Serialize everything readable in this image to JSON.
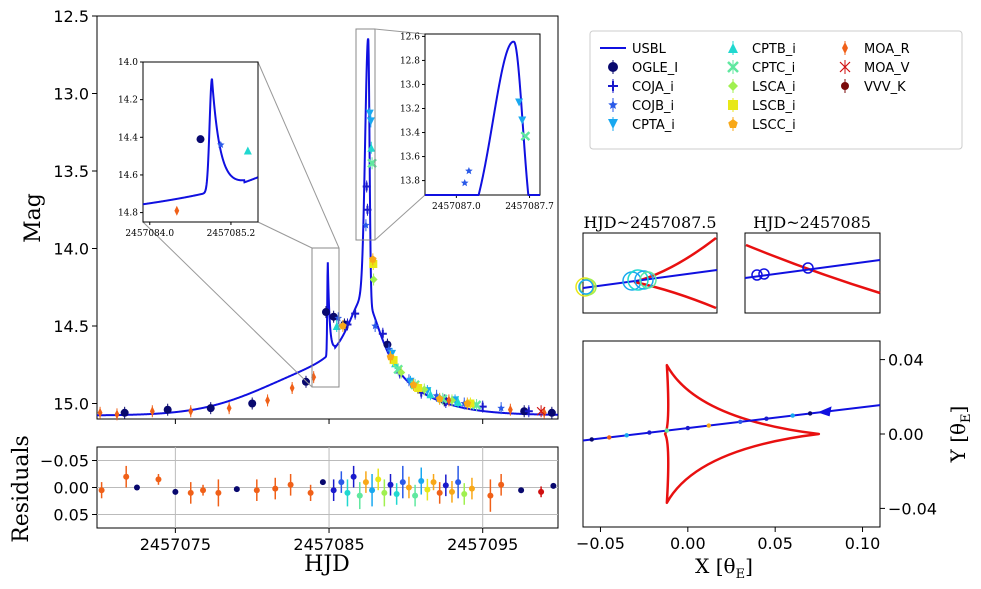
{
  "chart_data": [
    {
      "id": "main",
      "type": "line",
      "title": "",
      "ylabel": "Mag",
      "xlabel": "",
      "xlim": [
        2457069.9,
        2457099.9
      ],
      "ylim": [
        15.1,
        12.5
      ],
      "y_inverted": true,
      "yticks": [
        "12.5",
        "13.0",
        "13.5",
        "14.0",
        "14.5",
        "15.0"
      ],
      "ytick_values": [
        12.5,
        13.0,
        13.5,
        14.0,
        14.5,
        15.0
      ],
      "model_name": "USBL",
      "model_color": "#1010e0",
      "series": [
        {
          "name": "OGLE_I",
          "color": "#08086e",
          "marker": "circle",
          "points": [
            [
              2457071.7,
              15.06
            ],
            [
              2457074.5,
              15.04
            ],
            [
              2457077.3,
              15.03
            ],
            [
              2457080.0,
              15.0
            ],
            [
              2457083.5,
              14.86
            ],
            [
              2457084.8,
              14.41
            ],
            [
              2457085.3,
              14.44
            ],
            [
              2457086.0,
              14.49
            ],
            [
              2457088.8,
              14.62
            ],
            [
              2457092.5,
              14.98
            ],
            [
              2457097.7,
              15.05
            ],
            [
              2457099.5,
              15.06
            ]
          ]
        },
        {
          "name": "COJA_i",
          "color": "#1a1acc",
          "marker": "plus",
          "points": [
            [
              2457086.2,
              14.49
            ],
            [
              2457086.7,
              14.42
            ],
            [
              2457087.45,
              13.6
            ],
            [
              2457087.5,
              13.75
            ],
            [
              2457088.5,
              14.55
            ],
            [
              2457089.6,
              14.8
            ],
            [
              2457091.0,
              14.93
            ],
            [
              2457092.6,
              14.99
            ],
            [
              2457095.0,
              15.02
            ],
            [
              2457098.0,
              15.05
            ]
          ]
        },
        {
          "name": "COJB_i",
          "color": "#2a5ae8",
          "marker": "star",
          "points": [
            [
              2457085.6,
              14.45
            ],
            [
              2457087.4,
              13.85
            ],
            [
              2457088.0,
              14.5
            ],
            [
              2457088.9,
              14.65
            ],
            [
              2457090.2,
              14.85
            ],
            [
              2457092.0,
              14.95
            ],
            [
              2457093.8,
              15.0
            ],
            [
              2457096.2,
              15.03
            ]
          ]
        },
        {
          "name": "CPTA_i",
          "color": "#18a8f0",
          "marker": "tri-down",
          "points": [
            [
              2457087.65,
              13.13
            ],
            [
              2457087.72,
              13.18
            ],
            [
              2457089.1,
              14.68
            ],
            [
              2457090.3,
              14.86
            ],
            [
              2457091.4,
              14.92
            ],
            [
              2457093.2,
              14.98
            ]
          ]
        },
        {
          "name": "CPTB_i",
          "color": "#20d8d0",
          "marker": "tri-up",
          "points": [
            [
              2457085.5,
              14.5
            ],
            [
              2457087.75,
              13.35
            ],
            [
              2457089.3,
              14.74
            ],
            [
              2457091.6,
              14.94
            ],
            [
              2457093.4,
              14.99
            ]
          ]
        },
        {
          "name": "CPTC_i",
          "color": "#60e8a0",
          "marker": "x",
          "points": [
            [
              2457087.8,
              13.45
            ],
            [
              2457089.5,
              14.78
            ],
            [
              2457090.6,
              14.88
            ],
            [
              2457092.4,
              14.97
            ],
            [
              2457094.6,
              15.01
            ]
          ]
        },
        {
          "name": "LSCA_i",
          "color": "#a0f050",
          "marker": "diamond",
          "points": [
            [
              2457087.9,
              14.2
            ],
            [
              2457089.7,
              14.8
            ],
            [
              2457091.2,
              14.91
            ],
            [
              2457093.0,
              14.98
            ]
          ]
        },
        {
          "name": "LSCB_i",
          "color": "#e8e818",
          "marker": "square",
          "points": [
            [
              2457087.88,
              14.1
            ],
            [
              2457089.2,
              14.72
            ],
            [
              2457090.8,
              14.9
            ],
            [
              2457094.2,
              15.0
            ]
          ]
        },
        {
          "name": "LSCC_i",
          "color": "#f8a818",
          "marker": "pentagon",
          "points": [
            [
              2457085.9,
              14.5
            ],
            [
              2457087.85,
              14.07
            ],
            [
              2457089.0,
              14.7
            ],
            [
              2457090.5,
              14.88
            ],
            [
              2457092.2,
              14.97
            ],
            [
              2457094.0,
              15.0
            ]
          ]
        },
        {
          "name": "MOA_R",
          "color": "#f06018",
          "marker": "diamond-thin",
          "points": [
            [
              2457070.1,
              15.06
            ],
            [
              2457071.2,
              15.07
            ],
            [
              2457073.5,
              15.05
            ],
            [
              2457076.0,
              15.05
            ],
            [
              2457078.5,
              15.03
            ],
            [
              2457081.0,
              14.98
            ],
            [
              2457082.6,
              14.9
            ],
            [
              2457084.0,
              14.83
            ],
            [
              2457092.8,
              14.98
            ],
            [
              2457096.8,
              15.04
            ],
            [
              2457099.0,
              15.06
            ]
          ]
        },
        {
          "name": "MOA_V",
          "color": "#d01010",
          "marker": "x-thin",
          "points": [
            [
              2457098.8,
              15.05
            ]
          ]
        },
        {
          "name": "VVV_K",
          "color": "#7a0a0a",
          "marker": "circle-small",
          "points": []
        }
      ]
    },
    {
      "id": "inset_left",
      "type": "line",
      "xlim": [
        2457083.9,
        2457085.6
      ],
      "ylim": [
        14.85,
        14.0
      ],
      "y_inverted": true,
      "xticks": [
        "2457084.0",
        "2457085.2"
      ],
      "xtick_values": [
        2457084.0,
        2457085.2
      ],
      "yticks": [
        "14.0",
        "14.2",
        "14.4",
        "14.6",
        "14.8"
      ],
      "ytick_values": [
        14.0,
        14.2,
        14.4,
        14.6,
        14.8
      ],
      "points": [
        {
          "series": "MOA_R",
          "x": 2457084.4,
          "y": 14.79,
          "color": "#f06018"
        },
        {
          "series": "OGLE_I",
          "x": 2457084.75,
          "y": 14.41,
          "color": "#08086e"
        },
        {
          "series": "COJB_i",
          "x": 2457085.05,
          "y": 14.44,
          "color": "#2a5ae8"
        },
        {
          "series": "CPTB_i",
          "x": 2457085.45,
          "y": 14.47,
          "color": "#20d8d0"
        }
      ]
    },
    {
      "id": "inset_right",
      "type": "line",
      "xlim": [
        2457086.7,
        2457087.8
      ],
      "ylim": [
        13.92,
        12.58
      ],
      "y_inverted": true,
      "xticks": [
        "2457087.0",
        "2457087.7"
      ],
      "xtick_values": [
        2457087.0,
        2457087.7
      ],
      "yticks": [
        "12.6",
        "12.8",
        "13.0",
        "13.2",
        "13.4",
        "13.6",
        "13.8"
      ],
      "ytick_values": [
        12.6,
        12.8,
        13.0,
        13.2,
        13.4,
        13.6,
        13.8
      ],
      "points": [
        {
          "series": "COJB_i",
          "x": 2457087.08,
          "y": 13.82,
          "color": "#2a5ae8"
        },
        {
          "series": "COJB_i",
          "x": 2457087.12,
          "y": 13.72,
          "color": "#2a5ae8"
        },
        {
          "series": "CPTA_i",
          "x": 2457087.6,
          "y": 13.15,
          "color": "#18a8f0"
        },
        {
          "series": "CPTA_i",
          "x": 2457087.63,
          "y": 13.3,
          "color": "#18a8f0"
        },
        {
          "series": "CPTC_i",
          "x": 2457087.66,
          "y": 13.43,
          "color": "#60e8a0"
        }
      ]
    },
    {
      "id": "residuals",
      "type": "scatter",
      "ylabel": "Residuals",
      "xlabel": "HJD",
      "xlim": [
        2457069.9,
        2457099.9
      ],
      "ylim": [
        0.075,
        -0.075
      ],
      "y_inverted": true,
      "xticks": [
        "2457075",
        "2457085",
        "2457095"
      ],
      "xtick_values": [
        2457075,
        2457085,
        2457095
      ],
      "yticks": [
        "−0.05",
        "0.00",
        "0.05"
      ],
      "ytick_values": [
        -0.05,
        0.0,
        0.05
      ],
      "points": [
        [
          2457070.2,
          0.005,
          0.015,
          "#f06018"
        ],
        [
          2457071.8,
          -0.02,
          0.02,
          "#f06018"
        ],
        [
          2457072.5,
          0.0,
          0.0,
          "#08086e"
        ],
        [
          2457073.9,
          -0.015,
          0.01,
          "#f06018"
        ],
        [
          2457075.0,
          0.008,
          0.0,
          "#08086e"
        ],
        [
          2457076.0,
          0.01,
          0.02,
          "#f06018"
        ],
        [
          2457076.8,
          0.005,
          0.01,
          "#f06018"
        ],
        [
          2457077.8,
          0.01,
          0.025,
          "#f06018"
        ],
        [
          2457079.0,
          0.003,
          0.0,
          "#08086e"
        ],
        [
          2457080.3,
          0.005,
          0.02,
          "#f06018"
        ],
        [
          2457081.5,
          0.002,
          0.02,
          "#f06018"
        ],
        [
          2457082.5,
          -0.005,
          0.02,
          "#f06018"
        ],
        [
          2457083.8,
          0.01,
          0.015,
          "#f06018"
        ],
        [
          2457084.6,
          -0.01,
          0.0,
          "#08086e"
        ],
        [
          2457085.3,
          0.005,
          0.02,
          "#1a1acc"
        ],
        [
          2457085.8,
          -0.01,
          0.02,
          "#2a5ae8"
        ],
        [
          2457086.2,
          0.01,
          0.025,
          "#20d8d0"
        ],
        [
          2457086.6,
          -0.02,
          0.02,
          "#1a1acc"
        ],
        [
          2457087.0,
          0.015,
          0.025,
          "#60e8a0"
        ],
        [
          2457087.4,
          -0.01,
          0.02,
          "#f8a818"
        ],
        [
          2457087.8,
          0.005,
          0.03,
          "#18a8f0"
        ],
        [
          2457088.2,
          -0.015,
          0.02,
          "#e8e818"
        ],
        [
          2457088.6,
          0.01,
          0.025,
          "#a0f050"
        ],
        [
          2457089.0,
          -0.005,
          0.02,
          "#1a1acc"
        ],
        [
          2457089.4,
          0.012,
          0.02,
          "#20d8d0"
        ],
        [
          2457089.8,
          -0.01,
          0.03,
          "#2a5ae8"
        ],
        [
          2457090.2,
          0.0,
          0.02,
          "#f8a818"
        ],
        [
          2457090.6,
          0.015,
          0.02,
          "#60e8a0"
        ],
        [
          2457091.0,
          -0.012,
          0.025,
          "#18a8f0"
        ],
        [
          2457091.4,
          0.004,
          0.02,
          "#e8e818"
        ],
        [
          2457091.8,
          -0.01,
          0.015,
          "#f8a818"
        ],
        [
          2457092.2,
          0.01,
          0.02,
          "#f06018"
        ],
        [
          2457092.6,
          -0.004,
          0.02,
          "#1a1acc"
        ],
        [
          2457093.0,
          0.008,
          0.02,
          "#f8a818"
        ],
        [
          2457093.4,
          -0.01,
          0.03,
          "#2a5ae8"
        ],
        [
          2457093.8,
          0.012,
          0.02,
          "#a0f050"
        ],
        [
          2457094.3,
          0.002,
          0.02,
          "#f8a818"
        ],
        [
          2457095.5,
          0.015,
          0.03,
          "#f06018"
        ],
        [
          2457096.2,
          -0.005,
          0.02,
          "#f06018"
        ],
        [
          2457097.5,
          0.005,
          0.0,
          "#08086e"
        ],
        [
          2457098.8,
          0.008,
          0.01,
          "#d01010"
        ],
        [
          2457099.6,
          -0.003,
          0.0,
          "#08086e"
        ]
      ]
    },
    {
      "id": "zoom_1",
      "type": "line",
      "title": "HJD~2457087.5",
      "caustic_color": "#e81010",
      "trajectory_color": "#1010e0"
    },
    {
      "id": "zoom_2",
      "type": "line",
      "title": "HJD~2457085",
      "caustic_color": "#e81010",
      "trajectory_color": "#1010e0"
    },
    {
      "id": "caustic",
      "type": "line",
      "xlabel": "X [θ_E]",
      "ylabel": "Y [θ_E]",
      "xlim": [
        -0.06,
        0.11
      ],
      "ylim": [
        -0.05,
        0.05
      ],
      "xticks": [
        "−0.05",
        "0.00",
        "0.05",
        "0.10"
      ],
      "xtick_values": [
        -0.05,
        0.0,
        0.05,
        0.1
      ],
      "yticks": [
        "−0.04",
        "0.00",
        "0.04"
      ],
      "ytick_values": [
        -0.04,
        0.0,
        0.04
      ],
      "caustic_color": "#e81010",
      "trajectory_color": "#1010e0",
      "trajectory": {
        "x0": -0.06,
        "y0": -0.0035,
        "x1": 0.11,
        "y1": 0.0155
      }
    }
  ],
  "legend": {
    "title": "",
    "placement": "top-right",
    "entries": [
      "USBL",
      "OGLE_I",
      "COJA_i",
      "COJB_i",
      "CPTA_i",
      "CPTB_i",
      "CPTC_i",
      "LSCA_i",
      "LSCB_i",
      "LSCC_i",
      "MOA_R",
      "MOA_V",
      "VVV_K"
    ]
  },
  "labels": {
    "mag": "Mag",
    "residuals": "Residuals",
    "hjd": "HJD",
    "x_label": "X [θ",
    "x_sub": "E",
    "x_end": "]",
    "y_label": "Y [θ",
    "y_sub": "E",
    "y_end": "]",
    "zoom1_title": "HJD~2457087.5",
    "zoom2_title": "HJD~2457085"
  }
}
